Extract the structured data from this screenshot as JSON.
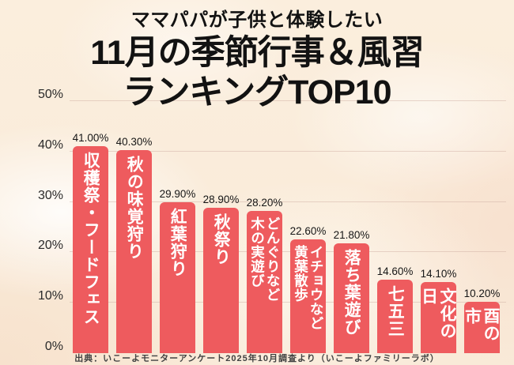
{
  "title": {
    "line1": "ママパパが子供と体験したい",
    "line2": "11月の季節行事＆風習",
    "line3": "ランキングTOP10"
  },
  "source": "出典：いこーよモニターアンケート2025年10月調査より（いこーよファミリーラボ）",
  "chart_data": {
    "type": "bar",
    "title": "11月の季節行事＆風習ランキングTOP10",
    "categories": [
      "収穫祭・フードフェス",
      "秋の味覚狩り",
      "紅葉狩り",
      "秋祭り",
      "どんぐりなど\n木の実遊び",
      "イチョウなど\n黄葉散歩",
      "落ち葉遊び",
      "七五三",
      "文化の日",
      "酉の市"
    ],
    "values": [
      41.0,
      40.3,
      29.9,
      28.9,
      28.2,
      22.6,
      21.8,
      14.6,
      14.1,
      10.2
    ],
    "value_labels": [
      "41.00%",
      "40.30%",
      "29.90%",
      "28.90%",
      "28.20%",
      "22.60%",
      "21.80%",
      "14.60%",
      "14.10%",
      "10.20%"
    ],
    "xlabel": "",
    "ylabel": "",
    "ylim": [
      0,
      50
    ],
    "yticks": [
      0,
      10,
      20,
      30,
      40,
      50
    ],
    "ytick_labels": [
      "0%",
      "10%",
      "20%",
      "30%",
      "40%",
      "50%"
    ],
    "grid": true,
    "legend": false,
    "bar_color": "#ee5b5e",
    "bar_label_color": "#ffffff",
    "value_label_color": "#161616"
  }
}
